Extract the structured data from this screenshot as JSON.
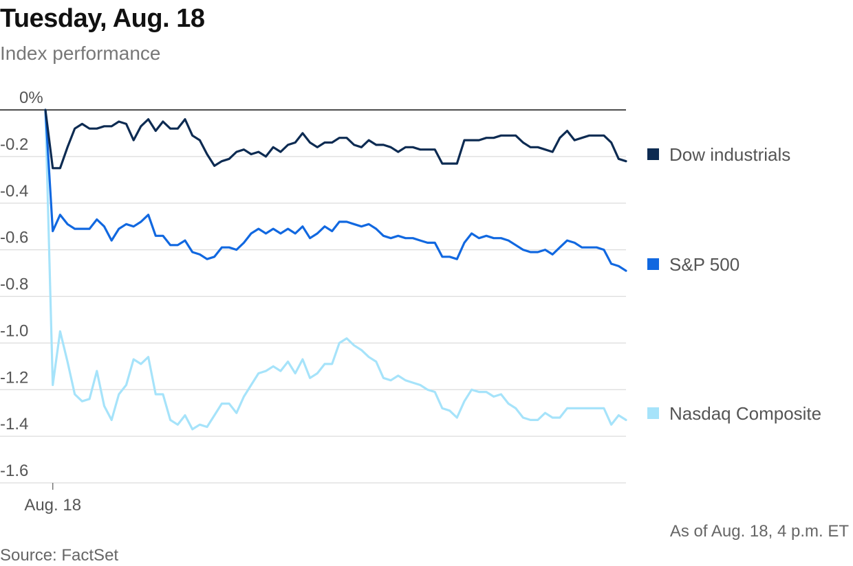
{
  "title": "Tuesday, Aug. 18",
  "subtitle": "Index performance",
  "note": "As of Aug. 18, 4 p.m. ET",
  "source": "Source: FactSet",
  "chart_data": {
    "type": "line",
    "title": "Tuesday, Aug. 18",
    "subtitle": "Index performance",
    "xlabel": "",
    "ylabel": "",
    "ylim": [
      -1.6,
      0
    ],
    "yticks": [
      {
        "value": 0,
        "label": "0%"
      },
      {
        "value": -0.2,
        "label": "-0.2"
      },
      {
        "value": -0.4,
        "label": "-0.4"
      },
      {
        "value": -0.6,
        "label": "-0.6"
      },
      {
        "value": -0.8,
        "label": "-0.8"
      },
      {
        "value": -1.0,
        "label": "-1.0"
      },
      {
        "value": -1.2,
        "label": "-1.2"
      },
      {
        "value": -1.4,
        "label": "-1.4"
      },
      {
        "value": -1.6,
        "label": "-1.6"
      }
    ],
    "xticks": [
      {
        "index": 1,
        "label": "Aug. 18"
      }
    ],
    "grid": true,
    "legend_position": "right",
    "series": [
      {
        "name": "Dow industrials",
        "color": "#0d2b52",
        "values": [
          0.0,
          -0.25,
          -0.25,
          -0.16,
          -0.08,
          -0.06,
          -0.08,
          -0.08,
          -0.07,
          -0.07,
          -0.05,
          -0.06,
          -0.13,
          -0.07,
          -0.04,
          -0.09,
          -0.05,
          -0.08,
          -0.08,
          -0.04,
          -0.11,
          -0.13,
          -0.19,
          -0.24,
          -0.22,
          -0.21,
          -0.18,
          -0.17,
          -0.19,
          -0.18,
          -0.2,
          -0.16,
          -0.18,
          -0.15,
          -0.14,
          -0.1,
          -0.14,
          -0.16,
          -0.14,
          -0.14,
          -0.12,
          -0.12,
          -0.15,
          -0.16,
          -0.13,
          -0.15,
          -0.15,
          -0.16,
          -0.18,
          -0.16,
          -0.16,
          -0.17,
          -0.17,
          -0.17,
          -0.23,
          -0.23,
          -0.23,
          -0.13,
          -0.13,
          -0.13,
          -0.12,
          -0.12,
          -0.11,
          -0.11,
          -0.11,
          -0.14,
          -0.16,
          -0.16,
          -0.17,
          -0.18,
          -0.12,
          -0.09,
          -0.13,
          -0.12,
          -0.11,
          -0.11,
          -0.11,
          -0.14,
          -0.21,
          -0.22
        ]
      },
      {
        "name": "S&P 500",
        "color": "#1168e0",
        "values": [
          0.0,
          -0.52,
          -0.45,
          -0.49,
          -0.51,
          -0.51,
          -0.51,
          -0.47,
          -0.5,
          -0.56,
          -0.51,
          -0.49,
          -0.5,
          -0.48,
          -0.45,
          -0.54,
          -0.54,
          -0.58,
          -0.58,
          -0.56,
          -0.61,
          -0.62,
          -0.64,
          -0.63,
          -0.59,
          -0.59,
          -0.6,
          -0.57,
          -0.53,
          -0.51,
          -0.53,
          -0.51,
          -0.53,
          -0.51,
          -0.53,
          -0.5,
          -0.55,
          -0.53,
          -0.5,
          -0.52,
          -0.48,
          -0.48,
          -0.49,
          -0.5,
          -0.49,
          -0.51,
          -0.54,
          -0.55,
          -0.54,
          -0.55,
          -0.55,
          -0.56,
          -0.57,
          -0.57,
          -0.63,
          -0.63,
          -0.64,
          -0.57,
          -0.53,
          -0.55,
          -0.54,
          -0.55,
          -0.55,
          -0.56,
          -0.58,
          -0.6,
          -0.61,
          -0.61,
          -0.6,
          -0.62,
          -0.59,
          -0.56,
          -0.57,
          -0.59,
          -0.59,
          -0.59,
          -0.6,
          -0.66,
          -0.67,
          -0.69
        ]
      },
      {
        "name": "Nasdaq Composite",
        "color": "#a6e3fa",
        "values": [
          0.0,
          -1.18,
          -0.95,
          -1.08,
          -1.22,
          -1.25,
          -1.24,
          -1.12,
          -1.27,
          -1.33,
          -1.22,
          -1.18,
          -1.07,
          -1.09,
          -1.06,
          -1.22,
          -1.22,
          -1.33,
          -1.35,
          -1.31,
          -1.37,
          -1.35,
          -1.36,
          -1.31,
          -1.26,
          -1.26,
          -1.3,
          -1.23,
          -1.18,
          -1.13,
          -1.12,
          -1.1,
          -1.12,
          -1.08,
          -1.13,
          -1.07,
          -1.15,
          -1.13,
          -1.09,
          -1.09,
          -1.0,
          -0.98,
          -1.01,
          -1.03,
          -1.06,
          -1.08,
          -1.15,
          -1.16,
          -1.14,
          -1.16,
          -1.17,
          -1.18,
          -1.2,
          -1.21,
          -1.28,
          -1.29,
          -1.32,
          -1.25,
          -1.2,
          -1.21,
          -1.21,
          -1.23,
          -1.22,
          -1.26,
          -1.28,
          -1.32,
          -1.33,
          -1.33,
          -1.3,
          -1.32,
          -1.32,
          -1.28,
          -1.28,
          -1.28,
          -1.28,
          -1.28,
          -1.28,
          -1.35,
          -1.31,
          -1.33
        ]
      }
    ]
  }
}
